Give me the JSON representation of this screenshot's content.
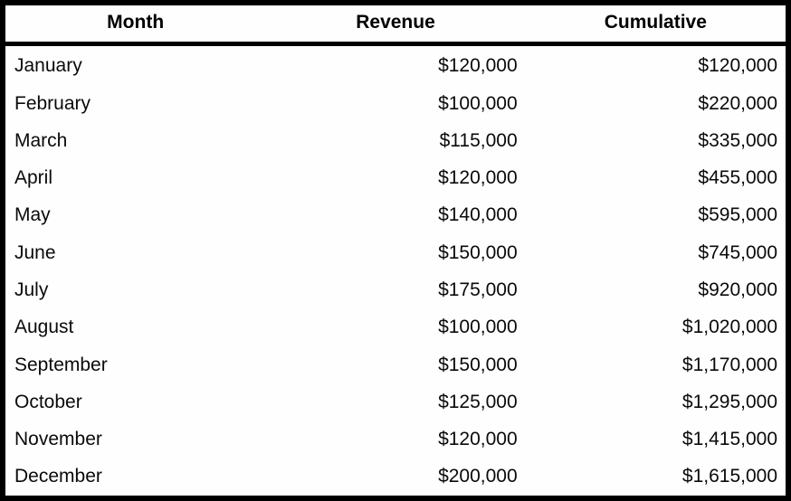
{
  "table": {
    "headers": [
      "Month",
      "Revenue",
      "Cumulative"
    ],
    "rows": [
      {
        "month": "January",
        "revenue": "$120,000",
        "cumulative": "$120,000"
      },
      {
        "month": "February",
        "revenue": "$100,000",
        "cumulative": "$220,000"
      },
      {
        "month": "March",
        "revenue": "$115,000",
        "cumulative": "$335,000"
      },
      {
        "month": "April",
        "revenue": "$120,000",
        "cumulative": "$455,000"
      },
      {
        "month": "May",
        "revenue": "$140,000",
        "cumulative": "$595,000"
      },
      {
        "month": "June",
        "revenue": "$150,000",
        "cumulative": "$745,000"
      },
      {
        "month": "July",
        "revenue": "$175,000",
        "cumulative": "$920,000"
      },
      {
        "month": "August",
        "revenue": "$100,000",
        "cumulative": "$1,020,000"
      },
      {
        "month": "September",
        "revenue": "$150,000",
        "cumulative": "$1,170,000"
      },
      {
        "month": "October",
        "revenue": "$125,000",
        "cumulative": "$1,295,000"
      },
      {
        "month": "November",
        "revenue": "$120,000",
        "cumulative": "$1,415,000"
      },
      {
        "month": "December",
        "revenue": "$200,000",
        "cumulative": "$1,615,000"
      }
    ]
  },
  "chart_data": {
    "type": "table",
    "columns": [
      "Month",
      "Revenue",
      "Cumulative"
    ],
    "months": [
      "January",
      "February",
      "March",
      "April",
      "May",
      "June",
      "July",
      "August",
      "September",
      "October",
      "November",
      "December"
    ],
    "revenue_usd": [
      120000,
      100000,
      115000,
      120000,
      140000,
      150000,
      175000,
      100000,
      150000,
      125000,
      120000,
      200000
    ],
    "cumulative_usd": [
      120000,
      220000,
      335000,
      455000,
      595000,
      745000,
      920000,
      1020000,
      1170000,
      1295000,
      1415000,
      1615000
    ]
  },
  "colors": {
    "border": "#000000",
    "background": "#fefefe",
    "text": "#0a0a0a"
  }
}
